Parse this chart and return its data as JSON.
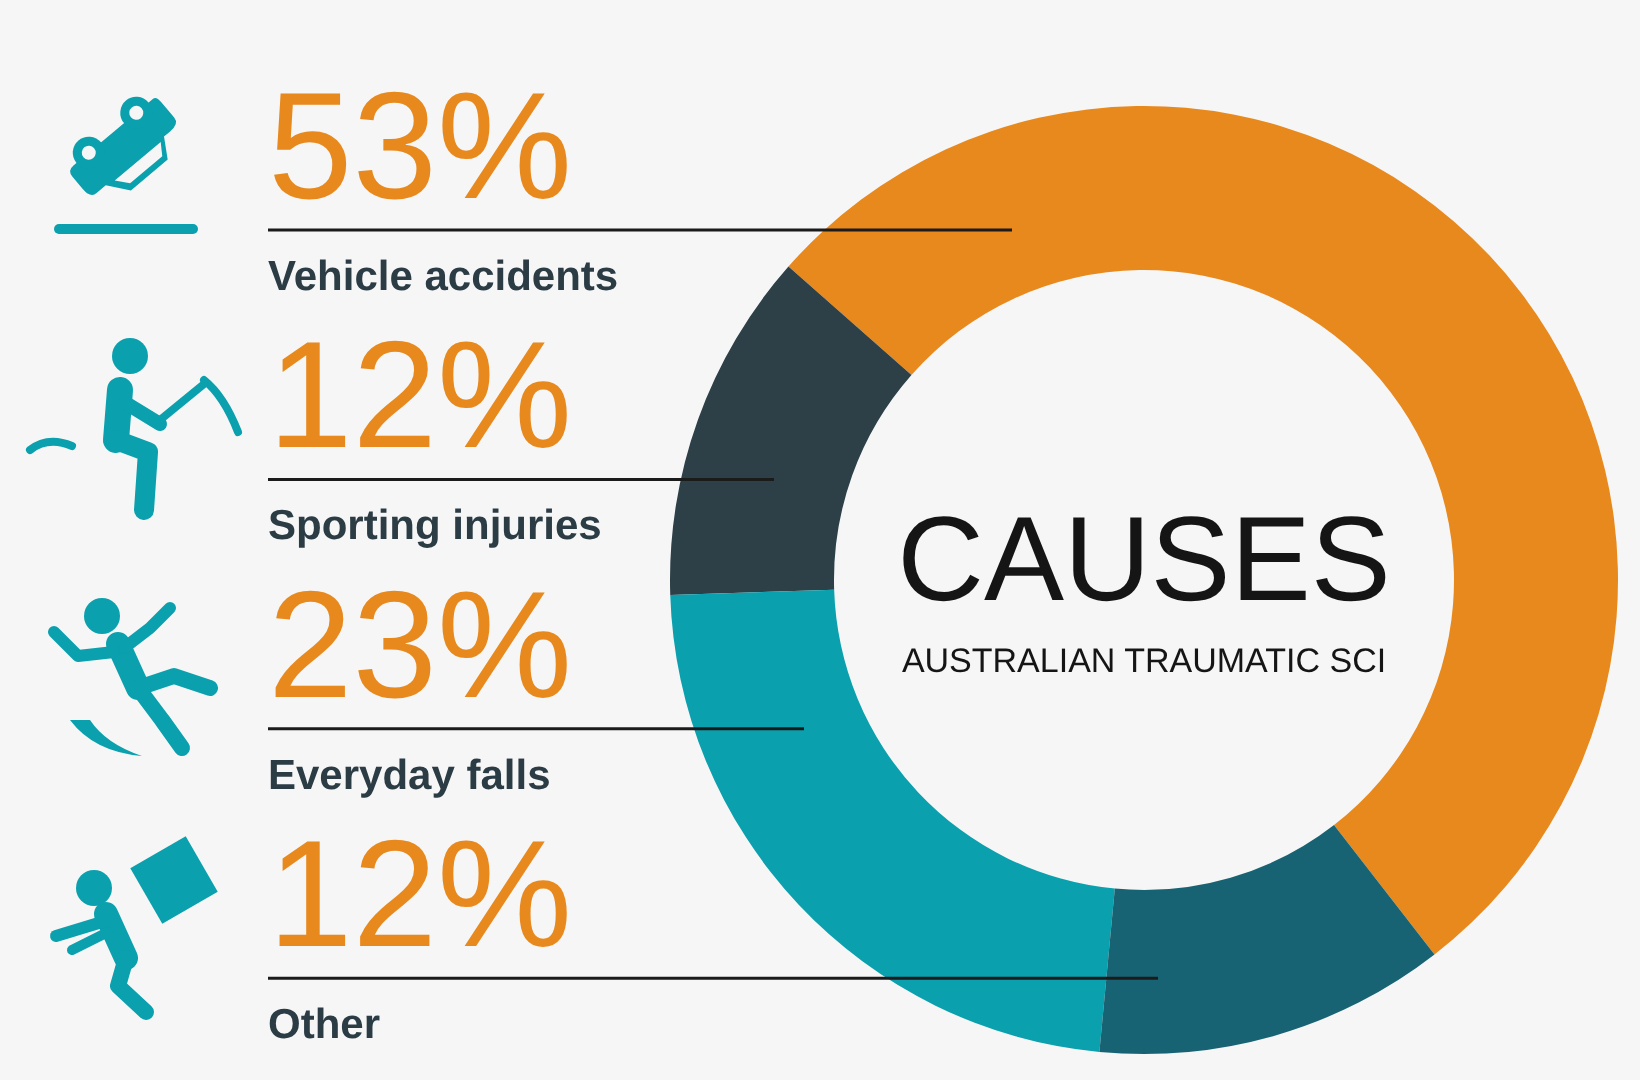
{
  "chart_data": {
    "type": "donut",
    "title": "CAUSES",
    "subtitle": "AUSTRALIAN TRAUMATIC SCI",
    "categories": [
      "Vehicle accidents",
      "Sporting injuries",
      "Everyday falls",
      "Other"
    ],
    "values": [
      53,
      12,
      23,
      12
    ],
    "colors": [
      "#e8891e",
      "#2d3f47",
      "#0aa0ae",
      "#186373"
    ],
    "value_labels": [
      "53%",
      "12%",
      "23%",
      "12%"
    ]
  }
}
